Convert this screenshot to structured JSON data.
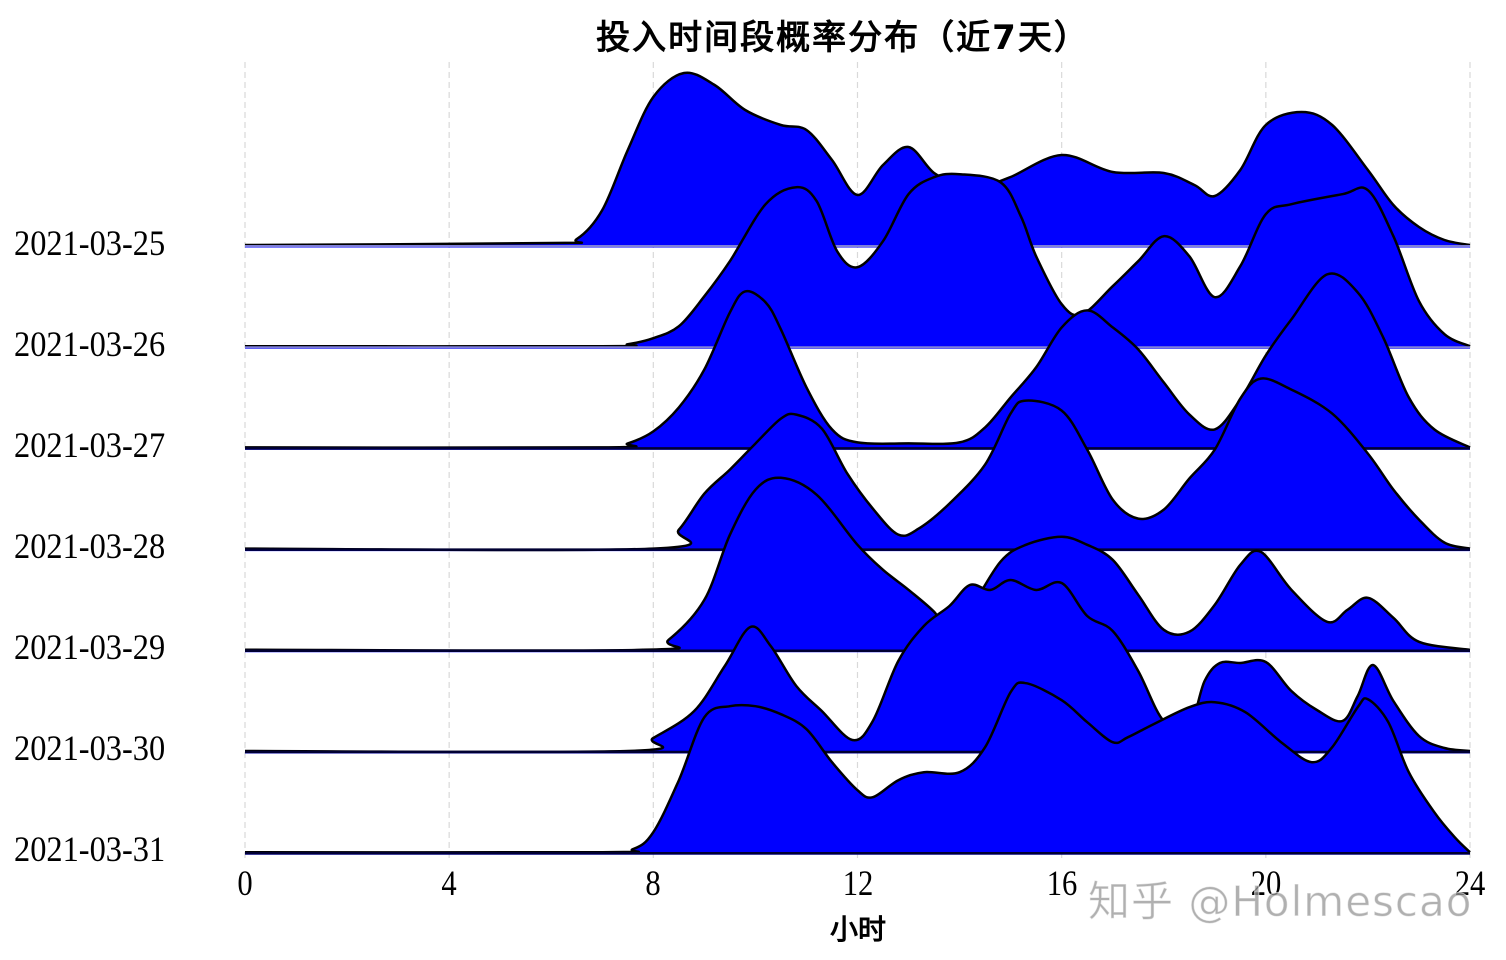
{
  "page": {
    "title": "投入时间段概率分布（近7天）",
    "watermark": "知乎 @Holmescao"
  },
  "colors": {
    "fill": "#0000ff",
    "stroke": "#000000",
    "grid": "#d9d9d9",
    "background": "#ffffff"
  },
  "chart_data": {
    "type": "ridgeline",
    "title": "投入时间段概率分布（近7天）",
    "xlabel": "小时",
    "ylabel": "",
    "xlim": [
      0,
      24
    ],
    "x_ticks": [
      0,
      4,
      8,
      12,
      16,
      20,
      24
    ],
    "grid": {
      "x": true,
      "y": false,
      "style": "dashed"
    },
    "legend": null,
    "value_unit": "relative density (height above baseline, arbitrary units)",
    "series": [
      {
        "name": "2021-03-25",
        "points": [
          [
            0,
            0
          ],
          [
            6,
            0.02
          ],
          [
            6.5,
            0.06
          ],
          [
            7,
            0.35
          ],
          [
            7.5,
            0.95
          ],
          [
            8,
            1.48
          ],
          [
            8.6,
            1.72
          ],
          [
            9.2,
            1.6
          ],
          [
            9.8,
            1.35
          ],
          [
            10.5,
            1.2
          ],
          [
            11,
            1.15
          ],
          [
            11.5,
            0.85
          ],
          [
            12,
            0.5
          ],
          [
            12.5,
            0.8
          ],
          [
            13,
            0.98
          ],
          [
            13.5,
            0.72
          ],
          [
            14,
            0.62
          ],
          [
            14.5,
            0.6
          ],
          [
            15,
            0.68
          ],
          [
            16,
            0.9
          ],
          [
            17,
            0.73
          ],
          [
            18,
            0.72
          ],
          [
            18.6,
            0.6
          ],
          [
            19,
            0.49
          ],
          [
            19.5,
            0.75
          ],
          [
            20,
            1.2
          ],
          [
            20.7,
            1.33
          ],
          [
            21.3,
            1.2
          ],
          [
            22,
            0.75
          ],
          [
            22.5,
            0.4
          ],
          [
            23,
            0.18
          ],
          [
            23.5,
            0.05
          ],
          [
            24,
            0
          ]
        ]
      },
      {
        "name": "2021-03-26",
        "points": [
          [
            0,
            0
          ],
          [
            7,
            0
          ],
          [
            7.5,
            0.02
          ],
          [
            8,
            0.08
          ],
          [
            8.5,
            0.2
          ],
          [
            9,
            0.5
          ],
          [
            9.5,
            0.85
          ],
          [
            10.2,
            1.42
          ],
          [
            10.8,
            1.59
          ],
          [
            11.2,
            1.45
          ],
          [
            11.6,
            0.95
          ],
          [
            12,
            0.79
          ],
          [
            12.5,
            1.05
          ],
          [
            13,
            1.52
          ],
          [
            13.5,
            1.69
          ],
          [
            14,
            1.72
          ],
          [
            14.8,
            1.64
          ],
          [
            15.2,
            1.3
          ],
          [
            15.5,
            0.9
          ],
          [
            16,
            0.42
          ],
          [
            16.4,
            0.32
          ],
          [
            17,
            0.6
          ],
          [
            17.5,
            0.85
          ],
          [
            18,
            1.1
          ],
          [
            18.5,
            0.9
          ],
          [
            19,
            0.49
          ],
          [
            19.5,
            0.8
          ],
          [
            20,
            1.32
          ],
          [
            20.5,
            1.42
          ],
          [
            21.5,
            1.52
          ],
          [
            22,
            1.56
          ],
          [
            22.5,
            1.1
          ],
          [
            23,
            0.45
          ],
          [
            23.5,
            0.12
          ],
          [
            24,
            0
          ]
        ]
      },
      {
        "name": "2021-03-27",
        "points": [
          [
            0,
            0
          ],
          [
            7,
            0
          ],
          [
            7.5,
            0.04
          ],
          [
            8,
            0.16
          ],
          [
            8.5,
            0.4
          ],
          [
            9,
            0.78
          ],
          [
            9.5,
            1.35
          ],
          [
            9.8,
            1.56
          ],
          [
            10.2,
            1.45
          ],
          [
            10.5,
            1.18
          ],
          [
            11,
            0.6
          ],
          [
            11.5,
            0.18
          ],
          [
            12,
            0.05
          ],
          [
            13,
            0.04
          ],
          [
            14,
            0.05
          ],
          [
            14.5,
            0.2
          ],
          [
            15,
            0.5
          ],
          [
            15.5,
            0.8
          ],
          [
            16,
            1.2
          ],
          [
            16.5,
            1.37
          ],
          [
            17,
            1.2
          ],
          [
            17.5,
            0.98
          ],
          [
            18,
            0.65
          ],
          [
            18.5,
            0.33
          ],
          [
            19,
            0.18
          ],
          [
            19.5,
            0.48
          ],
          [
            20,
            0.92
          ],
          [
            20.5,
            1.28
          ],
          [
            21.2,
            1.73
          ],
          [
            21.8,
            1.55
          ],
          [
            22.3,
            1.1
          ],
          [
            22.8,
            0.5
          ],
          [
            23.3,
            0.18
          ],
          [
            24,
            0
          ]
        ]
      },
      {
        "name": "2021-03-28",
        "points": [
          [
            0,
            0
          ],
          [
            8,
            0
          ],
          [
            8.5,
            0.19
          ],
          [
            9,
            0.55
          ],
          [
            9.5,
            0.79
          ],
          [
            10,
            1.05
          ],
          [
            10.5,
            1.3
          ],
          [
            10.8,
            1.34
          ],
          [
            11.3,
            1.2
          ],
          [
            11.8,
            0.75
          ],
          [
            12.3,
            0.4
          ],
          [
            12.8,
            0.14
          ],
          [
            13.2,
            0.2
          ],
          [
            13.8,
            0.45
          ],
          [
            14.5,
            0.84
          ],
          [
            15,
            1.35
          ],
          [
            15.3,
            1.48
          ],
          [
            16,
            1.38
          ],
          [
            16.5,
            0.99
          ],
          [
            17,
            0.49
          ],
          [
            17.5,
            0.3
          ],
          [
            18,
            0.39
          ],
          [
            18.5,
            0.7
          ],
          [
            19,
            0.99
          ],
          [
            19.5,
            1.5
          ],
          [
            19.9,
            1.7
          ],
          [
            20.5,
            1.59
          ],
          [
            21.3,
            1.35
          ],
          [
            22,
            0.95
          ],
          [
            22.5,
            0.59
          ],
          [
            23,
            0.29
          ],
          [
            23.5,
            0.06
          ],
          [
            24,
            0
          ]
        ]
      },
      {
        "name": "2021-03-29",
        "points": [
          [
            0,
            0
          ],
          [
            7.8,
            0
          ],
          [
            8.3,
            0.1
          ],
          [
            9,
            0.5
          ],
          [
            9.5,
            1.15
          ],
          [
            10,
            1.6
          ],
          [
            10.5,
            1.72
          ],
          [
            11.2,
            1.55
          ],
          [
            12,
            1.05
          ],
          [
            12.5,
            0.8
          ],
          [
            13,
            0.6
          ],
          [
            13.5,
            0.38
          ],
          [
            13.8,
            0.18
          ],
          [
            14.2,
            0.4
          ],
          [
            14.8,
            0.88
          ],
          [
            15.3,
            1.05
          ],
          [
            16,
            1.13
          ],
          [
            16.5,
            1.05
          ],
          [
            17,
            0.9
          ],
          [
            17.5,
            0.55
          ],
          [
            18,
            0.2
          ],
          [
            18.5,
            0.18
          ],
          [
            19,
            0.45
          ],
          [
            19.5,
            0.85
          ],
          [
            19.9,
            0.98
          ],
          [
            20.5,
            0.6
          ],
          [
            21.2,
            0.28
          ],
          [
            21.6,
            0.4
          ],
          [
            22,
            0.52
          ],
          [
            22.5,
            0.32
          ],
          [
            23,
            0.08
          ],
          [
            24,
            0
          ]
        ]
      },
      {
        "name": "2021-03-30",
        "points": [
          [
            0,
            0
          ],
          [
            7.5,
            0
          ],
          [
            8,
            0.13
          ],
          [
            8.8,
            0.4
          ],
          [
            9.4,
            0.85
          ],
          [
            9.9,
            1.24
          ],
          [
            10.3,
            1.05
          ],
          [
            10.8,
            0.65
          ],
          [
            11.3,
            0.4
          ],
          [
            11.9,
            0.11
          ],
          [
            12.3,
            0.3
          ],
          [
            12.8,
            0.9
          ],
          [
            13.3,
            1.25
          ],
          [
            13.8,
            1.45
          ],
          [
            14.2,
            1.66
          ],
          [
            14.6,
            1.61
          ],
          [
            15,
            1.71
          ],
          [
            15.5,
            1.61
          ],
          [
            16,
            1.68
          ],
          [
            16.5,
            1.35
          ],
          [
            17,
            1.2
          ],
          [
            17.5,
            0.8
          ],
          [
            18,
            0.3
          ],
          [
            18.5,
            0.26
          ],
          [
            18.8,
            0.7
          ],
          [
            19.1,
            0.88
          ],
          [
            19.5,
            0.88
          ],
          [
            20,
            0.89
          ],
          [
            20.5,
            0.6
          ],
          [
            21,
            0.41
          ],
          [
            21.5,
            0.3
          ],
          [
            21.8,
            0.55
          ],
          [
            22.1,
            0.86
          ],
          [
            22.5,
            0.5
          ],
          [
            23,
            0.15
          ],
          [
            23.5,
            0.03
          ],
          [
            24,
            0
          ]
        ]
      },
      {
        "name": "2021-03-31",
        "points": [
          [
            0,
            0
          ],
          [
            7,
            0
          ],
          [
            7.6,
            0.03
          ],
          [
            8,
            0.2
          ],
          [
            8.5,
            0.72
          ],
          [
            9,
            1.35
          ],
          [
            9.5,
            1.46
          ],
          [
            10,
            1.46
          ],
          [
            10.5,
            1.38
          ],
          [
            11,
            1.23
          ],
          [
            11.5,
            0.9
          ],
          [
            12,
            0.62
          ],
          [
            12.3,
            0.55
          ],
          [
            12.8,
            0.72
          ],
          [
            13.3,
            0.8
          ],
          [
            14,
            0.8
          ],
          [
            14.5,
            1.05
          ],
          [
            15,
            1.6
          ],
          [
            15.3,
            1.69
          ],
          [
            16,
            1.52
          ],
          [
            16.5,
            1.3
          ],
          [
            17,
            1.1
          ],
          [
            17.3,
            1.15
          ],
          [
            17.8,
            1.28
          ],
          [
            18.5,
            1.45
          ],
          [
            19,
            1.5
          ],
          [
            19.6,
            1.4
          ],
          [
            20.3,
            1.1
          ],
          [
            20.9,
            0.9
          ],
          [
            21.3,
            1.05
          ],
          [
            21.8,
            1.45
          ],
          [
            22,
            1.53
          ],
          [
            22.4,
            1.3
          ],
          [
            22.8,
            0.8
          ],
          [
            23.3,
            0.4
          ],
          [
            23.7,
            0.15
          ],
          [
            24,
            0
          ]
        ]
      }
    ],
    "y_tick_labels": [
      "2021-03-25",
      "2021-03-26",
      "2021-03-27",
      "2021-03-28",
      "2021-03-29",
      "2021-03-30",
      "2021-03-31"
    ]
  },
  "axes": {
    "x_tick_labels": [
      "0",
      "4",
      "8",
      "12",
      "16",
      "20",
      "24"
    ],
    "x_label": "小时",
    "y_labels": [
      "2021-03-25",
      "2021-03-26",
      "2021-03-27",
      "2021-03-28",
      "2021-03-29",
      "2021-03-30",
      "2021-03-31"
    ]
  }
}
